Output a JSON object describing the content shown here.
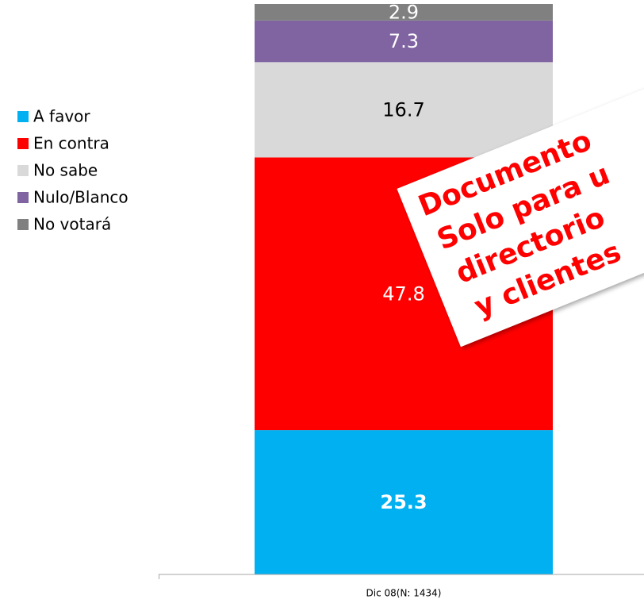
{
  "chart_data": {
    "type": "stacked_bar",
    "categories": [
      "Dic 08(N: 1434)"
    ],
    "series": [
      {
        "name": "A favor",
        "color": "#00b0f0",
        "values": [
          25.3
        ],
        "label_color": "#ffffff",
        "label_bold": true
      },
      {
        "name": "En contra",
        "color": "#ff0000",
        "values": [
          47.8
        ],
        "label_color": "#ffffff"
      },
      {
        "name": "No sabe",
        "color": "#d9d9d9",
        "values": [
          16.7
        ],
        "label_color": "#000000"
      },
      {
        "name": "Nulo/Blanco",
        "color": "#8064a2",
        "values": [
          7.3
        ],
        "label_color": "#ffffff"
      },
      {
        "name": "No votará",
        "color": "#808080",
        "values": [
          2.9
        ],
        "label_color": "#ffffff"
      }
    ],
    "ylim": [
      0,
      100
    ],
    "legend": "left",
    "annotations": [
      "Documento",
      "Solo para u",
      "directorio",
      "y clientes"
    ]
  }
}
